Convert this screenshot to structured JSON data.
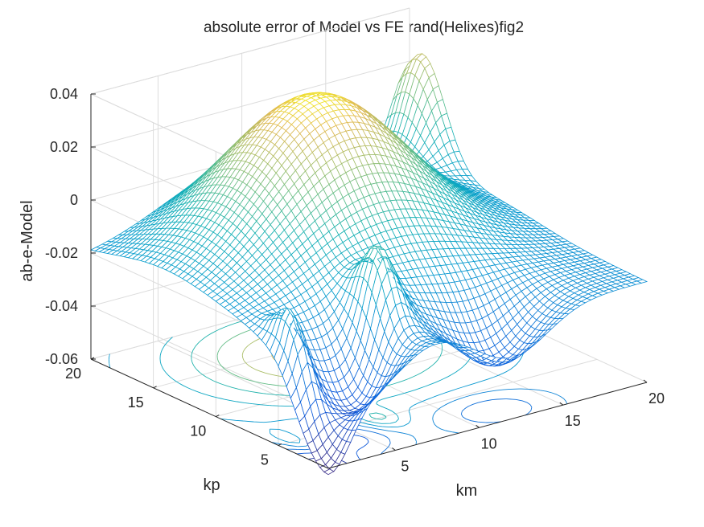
{
  "chart_data": {
    "type": "surface-mesh-contour",
    "title": "absolute error of Model vs FE rand(Helixes)fig2",
    "xlabel": "km",
    "ylabel": "kp",
    "zlabel": "ab-e-Model",
    "xlim": [
      1,
      20
    ],
    "ylim": [
      1,
      20
    ],
    "zlim": [
      -0.06,
      0.04
    ],
    "x_ticks": [
      "5",
      "10",
      "15",
      "20"
    ],
    "y_ticks": [
      "5",
      "10",
      "15",
      "20"
    ],
    "z_ticks": [
      "-0.06",
      "-0.04",
      "-0.02",
      "0",
      "0.02",
      "0.04"
    ],
    "colormap": "parula",
    "grid": true,
    "contour_on_base": true,
    "features": {
      "central_peak": {
        "km": 10,
        "kp": 14,
        "z": 0.037
      },
      "corner_peak": {
        "km": 20,
        "kp": 19,
        "z": 0.03
      },
      "spike_peak_1": {
        "km": 2,
        "kp": 5,
        "z": -0.025
      },
      "spike_peak_2": {
        "km": 7,
        "kp": 5,
        "z": -0.02
      },
      "minimum": {
        "km": 1,
        "kp": 1,
        "z": -0.06
      }
    }
  }
}
